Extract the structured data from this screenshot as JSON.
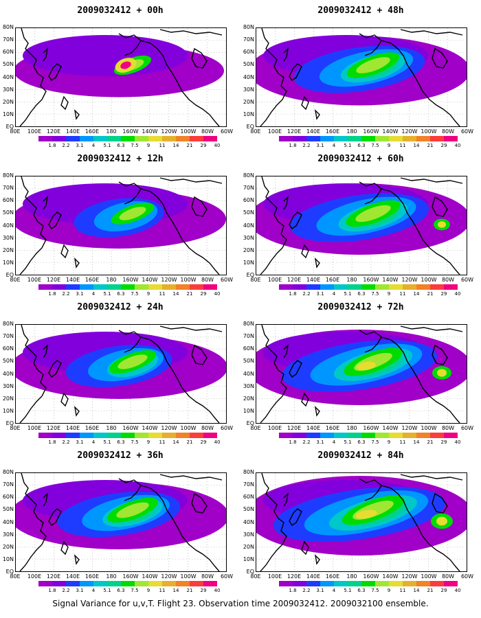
{
  "footer": "Signal Variance for u,v,T. Flight 23. Observation time 2009032412. 2009032100 ensemble.",
  "panels": [
    {
      "title": "2009032412 + 00h",
      "intensity": 0.15
    },
    {
      "title": "2009032412 + 48h",
      "intensity": 0.55
    },
    {
      "title": "2009032412 + 12h",
      "intensity": 0.3
    },
    {
      "title": "2009032412 + 60h",
      "intensity": 0.6
    },
    {
      "title": "2009032412 + 24h",
      "intensity": 0.4
    },
    {
      "title": "2009032412 + 72h",
      "intensity": 0.7
    },
    {
      "title": "2009032412 + 36h",
      "intensity": 0.5
    },
    {
      "title": "2009032412 + 84h",
      "intensity": 0.8
    }
  ],
  "lat_labels": [
    "80N",
    "70N",
    "60N",
    "50N",
    "40N",
    "30N",
    "20N",
    "10N",
    "EQ"
  ],
  "lon_labels": [
    "80E",
    "100E",
    "120E",
    "140E",
    "160E",
    "180",
    "160W",
    "140W",
    "120W",
    "100W",
    "80W",
    "60W"
  ],
  "colorbar": {
    "labels": [
      "1.8",
      "2.2",
      "3.1",
      "4",
      "5.1",
      "6.3",
      "7.5",
      "9",
      "11",
      "14",
      "21",
      "29",
      "40"
    ],
    "colors": [
      "#a000c8",
      "#8200dc",
      "#1e3cff",
      "#0096ff",
      "#00c8c8",
      "#00d28c",
      "#00dc00",
      "#a0e632",
      "#e6dc32",
      "#e6af2d",
      "#f08228",
      "#fa3c3c",
      "#f00082"
    ]
  }
}
